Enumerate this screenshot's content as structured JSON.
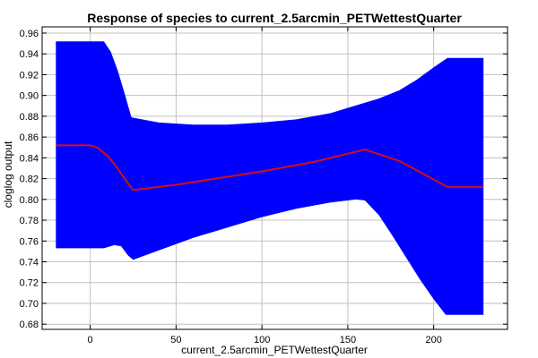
{
  "chart_data": {
    "type": "area",
    "title": "Response of species to current_2.5arcmin_PETWettestQuarter",
    "xlabel": "current_2.5arcmin_PETWettestQuarter",
    "ylabel": "cloglog output",
    "xlim": [
      -28,
      243
    ],
    "ylim": [
      0.675,
      0.966
    ],
    "x_ticks": [
      0,
      50,
      100,
      150,
      200
    ],
    "y_ticks": [
      0.68,
      0.7,
      0.72,
      0.74,
      0.76,
      0.78,
      0.8,
      0.82,
      0.84,
      0.86,
      0.88,
      0.9,
      0.92,
      0.94,
      0.96
    ],
    "y_tick_labels": [
      "0.68",
      "0.70",
      "0.72",
      "0.74",
      "0.76",
      "0.78",
      "0.80",
      "0.82",
      "0.84",
      "0.86",
      "0.88",
      "0.90",
      "0.92",
      "0.94",
      "0.96"
    ],
    "grid": true,
    "legend": "none",
    "colors": {
      "band": "#0000ff",
      "line": "#d01010",
      "grid": "#c0c0c0"
    },
    "band_upper": {
      "x": [
        -20,
        8,
        12,
        16,
        20,
        24,
        40,
        60,
        80,
        100,
        120,
        140,
        160,
        168,
        180,
        190,
        200,
        208,
        229
      ],
      "y": [
        0.952,
        0.952,
        0.942,
        0.924,
        0.902,
        0.879,
        0.874,
        0.872,
        0.872,
        0.874,
        0.877,
        0.883,
        0.893,
        0.897,
        0.905,
        0.915,
        0.927,
        0.936,
        0.936
      ]
    },
    "band_lower": {
      "x": [
        -20,
        0,
        8,
        14,
        18,
        22,
        25,
        40,
        60,
        80,
        100,
        120,
        140,
        155,
        160,
        168,
        176,
        184,
        192,
        200,
        207,
        229
      ],
      "y": [
        0.753,
        0.753,
        0.753,
        0.756,
        0.755,
        0.746,
        0.742,
        0.751,
        0.763,
        0.773,
        0.783,
        0.791,
        0.797,
        0.8,
        0.799,
        0.785,
        0.765,
        0.744,
        0.723,
        0.704,
        0.689,
        0.689
      ]
    },
    "line": {
      "x": [
        -20,
        0,
        4,
        10,
        15,
        20,
        25,
        50,
        100,
        130,
        160,
        180,
        208,
        229
      ],
      "y": [
        0.852,
        0.852,
        0.85,
        0.842,
        0.832,
        0.82,
        0.809,
        0.814,
        0.827,
        0.836,
        0.848,
        0.837,
        0.812,
        0.812
      ]
    }
  }
}
